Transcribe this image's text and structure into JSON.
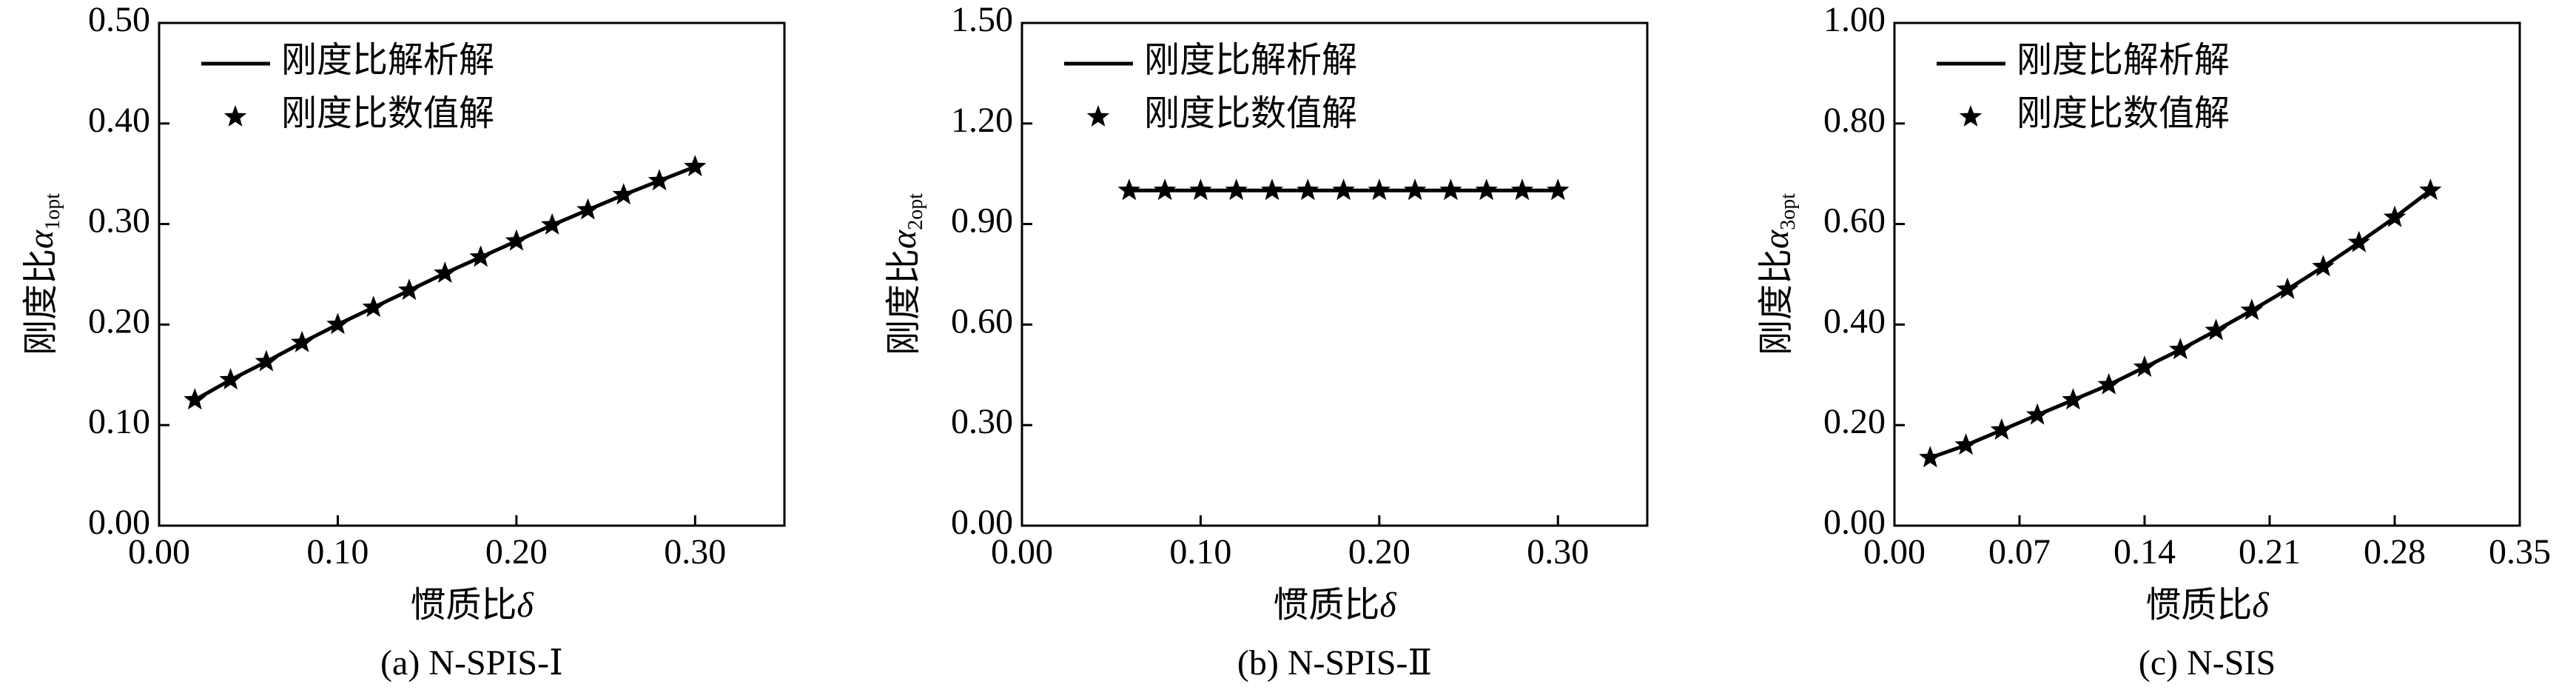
{
  "chart_data": [
    {
      "type": "line",
      "caption": "(a) N-SPIS-Ⅰ",
      "xlabel": {
        "text": "惯质比",
        "symbol": "δ"
      },
      "ylabel": {
        "text": "刚度比",
        "symbol": "α",
        "subscript": "1opt"
      },
      "x": [
        0.02,
        0.04,
        0.06,
        0.08,
        0.1,
        0.12,
        0.14,
        0.16,
        0.18,
        0.2,
        0.22,
        0.24,
        0.26,
        0.28,
        0.3
      ],
      "series": [
        {
          "name": "刚度比解析解",
          "style": "line",
          "color": "#000000",
          "values": [
            0.125,
            0.145,
            0.163,
            0.182,
            0.2,
            0.217,
            0.234,
            0.251,
            0.267,
            0.283,
            0.299,
            0.314,
            0.329,
            0.343,
            0.357
          ]
        },
        {
          "name": "刚度比数值解",
          "style": "marker",
          "color": "#000000",
          "values": [
            0.125,
            0.145,
            0.163,
            0.182,
            0.2,
            0.217,
            0.234,
            0.251,
            0.267,
            0.283,
            0.299,
            0.314,
            0.329,
            0.343,
            0.357
          ]
        }
      ],
      "xlim": [
        0,
        0.35
      ],
      "xticks": [
        {
          "value": 0,
          "label": "0.00"
        },
        {
          "value": 0.1,
          "label": "0.10"
        },
        {
          "value": 0.2,
          "label": "0.20"
        },
        {
          "value": 0.3,
          "label": "0.30"
        }
      ],
      "ylim": [
        0,
        0.5
      ],
      "yticks": [
        {
          "value": 0,
          "label": "0.00"
        },
        {
          "value": 0.1,
          "label": "0.10"
        },
        {
          "value": 0.2,
          "label": "0.20"
        },
        {
          "value": 0.3,
          "label": "0.30"
        },
        {
          "value": 0.4,
          "label": "0.40"
        },
        {
          "value": 0.5,
          "label": "0.50"
        }
      ],
      "grid": false,
      "legend_loc": "upper left"
    },
    {
      "type": "line",
      "caption": "(b) N-SPIS-Ⅱ",
      "xlabel": {
        "text": "惯质比",
        "symbol": "δ"
      },
      "ylabel": {
        "text": "刚度比",
        "symbol": "α",
        "subscript": "2opt"
      },
      "x": [
        0.06,
        0.08,
        0.1,
        0.12,
        0.14,
        0.16,
        0.18,
        0.2,
        0.22,
        0.24,
        0.26,
        0.28,
        0.3
      ],
      "series": [
        {
          "name": "刚度比解析解",
          "style": "line",
          "color": "#000000",
          "values": [
            1,
            1,
            1,
            1,
            1,
            1,
            1,
            1,
            1,
            1,
            1,
            1,
            1
          ]
        },
        {
          "name": "刚度比数值解",
          "style": "marker",
          "color": "#000000",
          "values": [
            1,
            1,
            1,
            1,
            1,
            1,
            1,
            1,
            1,
            1,
            1,
            1,
            1
          ]
        }
      ],
      "xlim": [
        0,
        0.35
      ],
      "xticks": [
        {
          "value": 0,
          "label": "0.00"
        },
        {
          "value": 0.1,
          "label": "0.10"
        },
        {
          "value": 0.2,
          "label": "0.20"
        },
        {
          "value": 0.3,
          "label": "0.30"
        }
      ],
      "ylim": [
        0,
        1.5
      ],
      "yticks": [
        {
          "value": 0,
          "label": "0.00"
        },
        {
          "value": 0.3,
          "label": "0.30"
        },
        {
          "value": 0.6,
          "label": "0.60"
        },
        {
          "value": 0.9,
          "label": "0.90"
        },
        {
          "value": 1.2,
          "label": "1.20"
        },
        {
          "value": 1.5,
          "label": "1.50"
        }
      ],
      "grid": false,
      "legend_loc": "upper left"
    },
    {
      "type": "line",
      "caption": "(c) N-SIS",
      "xlabel": {
        "text": "惯质比",
        "symbol": "δ"
      },
      "ylabel": {
        "text": "刚度比",
        "symbol": "α",
        "subscript": "3opt"
      },
      "x": [
        0.02,
        0.04,
        0.06,
        0.08,
        0.1,
        0.12,
        0.14,
        0.16,
        0.18,
        0.2,
        0.22,
        0.24,
        0.26,
        0.28,
        0.3
      ],
      "series": [
        {
          "name": "刚度比解析解",
          "style": "line",
          "color": "#000000",
          "values": [
            0.135,
            0.16,
            0.19,
            0.22,
            0.25,
            0.28,
            0.315,
            0.35,
            0.388,
            0.428,
            0.47,
            0.515,
            0.563,
            0.613,
            0.667
          ]
        },
        {
          "name": "刚度比数值解",
          "style": "marker",
          "color": "#000000",
          "values": [
            0.135,
            0.16,
            0.19,
            0.22,
            0.25,
            0.28,
            0.315,
            0.35,
            0.388,
            0.428,
            0.47,
            0.515,
            0.563,
            0.613,
            0.667
          ]
        }
      ],
      "xlim": [
        0,
        0.35
      ],
      "xticks": [
        {
          "value": 0,
          "label": "0.00"
        },
        {
          "value": 0.07,
          "label": "0.07"
        },
        {
          "value": 0.14,
          "label": "0.14"
        },
        {
          "value": 0.21,
          "label": "0.21"
        },
        {
          "value": 0.28,
          "label": "0.28"
        },
        {
          "value": 0.35,
          "label": "0.35"
        }
      ],
      "ylim": [
        0,
        1
      ],
      "yticks": [
        {
          "value": 0,
          "label": "0.00"
        },
        {
          "value": 0.2,
          "label": "0.20"
        },
        {
          "value": 0.4,
          "label": "0.40"
        },
        {
          "value": 0.6,
          "label": "0.60"
        },
        {
          "value": 0.8,
          "label": "0.80"
        },
        {
          "value": 1,
          "label": "1.00"
        }
      ],
      "grid": false,
      "legend_loc": "upper left"
    }
  ]
}
